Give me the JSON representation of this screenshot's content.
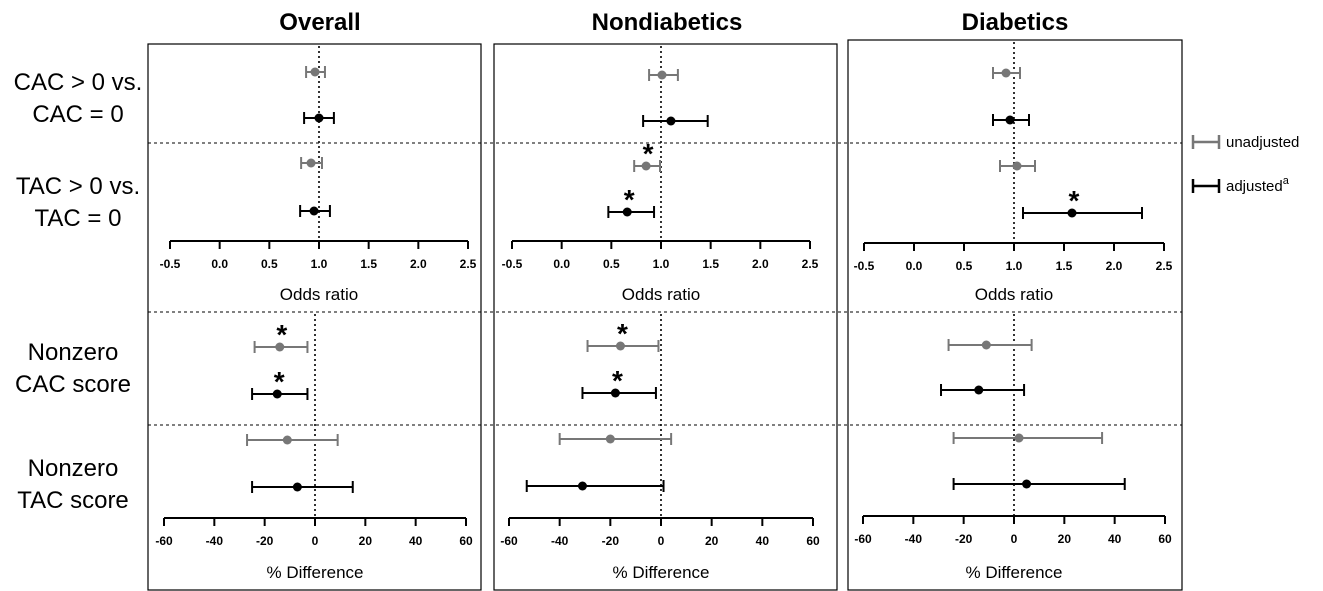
{
  "colors": {
    "unadjusted": "#777777",
    "adjusted": "#000000"
  },
  "panels": [
    {
      "title": "Overall"
    },
    {
      "title": "Nondiabetics"
    },
    {
      "title": "Diabetics"
    }
  ],
  "row_labels": [
    [
      "CAC > 0 vs.",
      "CAC = 0"
    ],
    [
      "TAC > 0 vs.",
      "TAC = 0"
    ],
    [
      "Nonzero",
      "CAC score"
    ],
    [
      "Nonzero",
      "TAC score"
    ]
  ],
  "legend": {
    "unadjusted": "unadjusted",
    "adjusted": "adjusted",
    "adjusted_sup": "a"
  },
  "chart_data": [
    {
      "type": "forest",
      "panel": "Overall",
      "xlabel": "Odds ratio",
      "xlim": [
        -0.5,
        2.5
      ],
      "ticks": [
        "-0.5",
        "0.0",
        "0.5",
        "1.0",
        "1.5",
        "2.0",
        "2.5"
      ],
      "reference": 1.0,
      "rows": [
        {
          "row": "CAC > 0 vs. CAC = 0",
          "unadjusted": {
            "est": 0.96,
            "lo": 0.87,
            "hi": 1.06,
            "sig": false
          },
          "adjusted": {
            "est": 1.0,
            "lo": 0.85,
            "hi": 1.15,
            "sig": false
          }
        },
        {
          "row": "TAC > 0 vs. TAC = 0",
          "unadjusted": {
            "est": 0.92,
            "lo": 0.82,
            "hi": 1.03,
            "sig": false
          },
          "adjusted": {
            "est": 0.95,
            "lo": 0.81,
            "hi": 1.11,
            "sig": false
          }
        }
      ]
    },
    {
      "type": "forest",
      "panel": "Nondiabetics",
      "xlabel": "Odds ratio",
      "xlim": [
        -0.5,
        2.5
      ],
      "ticks": [
        "-0.5",
        "0.0",
        "0.5",
        "1.0",
        "1.5",
        "2.0",
        "2.5"
      ],
      "reference": 1.0,
      "rows": [
        {
          "row": "CAC > 0 vs. CAC = 0",
          "unadjusted": {
            "est": 1.01,
            "lo": 0.88,
            "hi": 1.17,
            "sig": false
          },
          "adjusted": {
            "est": 1.1,
            "lo": 0.82,
            "hi": 1.47,
            "sig": false
          }
        },
        {
          "row": "TAC > 0 vs. TAC = 0",
          "unadjusted": {
            "est": 0.85,
            "lo": 0.73,
            "hi": 0.99,
            "sig": true
          },
          "adjusted": {
            "est": 0.66,
            "lo": 0.47,
            "hi": 0.93,
            "sig": true
          }
        }
      ]
    },
    {
      "type": "forest",
      "panel": "Diabetics",
      "xlabel": "Odds ratio",
      "xlim": [
        -0.5,
        2.5
      ],
      "ticks": [
        "-0.5",
        "0.0",
        "0.5",
        "1.0",
        "1.5",
        "2.0",
        "2.5"
      ],
      "reference": 1.0,
      "rows": [
        {
          "row": "CAC > 0 vs. CAC = 0",
          "unadjusted": {
            "est": 0.92,
            "lo": 0.79,
            "hi": 1.06,
            "sig": false
          },
          "adjusted": {
            "est": 0.96,
            "lo": 0.79,
            "hi": 1.15,
            "sig": false
          }
        },
        {
          "row": "TAC > 0 vs. TAC = 0",
          "unadjusted": {
            "est": 1.03,
            "lo": 0.86,
            "hi": 1.21,
            "sig": false
          },
          "adjusted": {
            "est": 1.58,
            "lo": 1.09,
            "hi": 2.28,
            "sig": true
          }
        }
      ]
    },
    {
      "type": "forest",
      "panel": "Overall",
      "xlabel": "% Difference",
      "xlim": [
        -60,
        60
      ],
      "ticks": [
        "-60",
        "-40",
        "-20",
        "0",
        "20",
        "40",
        "60"
      ],
      "reference": 0,
      "rows": [
        {
          "row": "Nonzero CAC score",
          "unadjusted": {
            "est": -14,
            "lo": -24,
            "hi": -3,
            "sig": true
          },
          "adjusted": {
            "est": -15,
            "lo": -25,
            "hi": -3,
            "sig": true
          }
        },
        {
          "row": "Nonzero TAC score",
          "unadjusted": {
            "est": -11,
            "lo": -27,
            "hi": 9,
            "sig": false
          },
          "adjusted": {
            "est": -7,
            "lo": -25,
            "hi": 15,
            "sig": false
          }
        }
      ]
    },
    {
      "type": "forest",
      "panel": "Nondiabetics",
      "xlabel": "% Difference",
      "xlim": [
        -60,
        60
      ],
      "ticks": [
        "-60",
        "-40",
        "-20",
        "0",
        "20",
        "40",
        "60"
      ],
      "reference": 0,
      "rows": [
        {
          "row": "Nonzero CAC score",
          "unadjusted": {
            "est": -16,
            "lo": -29,
            "hi": -1,
            "sig": true
          },
          "adjusted": {
            "est": -18,
            "lo": -31,
            "hi": -2,
            "sig": true
          }
        },
        {
          "row": "Nonzero TAC score",
          "unadjusted": {
            "est": -20,
            "lo": -40,
            "hi": 4,
            "sig": false
          },
          "adjusted": {
            "est": -31,
            "lo": -53,
            "hi": 1,
            "sig": false
          }
        }
      ]
    },
    {
      "type": "forest",
      "panel": "Diabetics",
      "xlabel": "% Difference",
      "xlim": [
        -60,
        60
      ],
      "ticks": [
        "-60",
        "-40",
        "-20",
        "0",
        "20",
        "40",
        "60"
      ],
      "reference": 0,
      "rows": [
        {
          "row": "Nonzero CAC score",
          "unadjusted": {
            "est": -11,
            "lo": -26,
            "hi": 7,
            "sig": false
          },
          "adjusted": {
            "est": -14,
            "lo": -29,
            "hi": 4,
            "sig": false
          }
        },
        {
          "row": "Nonzero TAC score",
          "unadjusted": {
            "est": 2,
            "lo": -24,
            "hi": 35,
            "sig": false
          },
          "adjusted": {
            "est": 5,
            "lo": -24,
            "hi": 44,
            "sig": false
          }
        }
      ]
    }
  ]
}
